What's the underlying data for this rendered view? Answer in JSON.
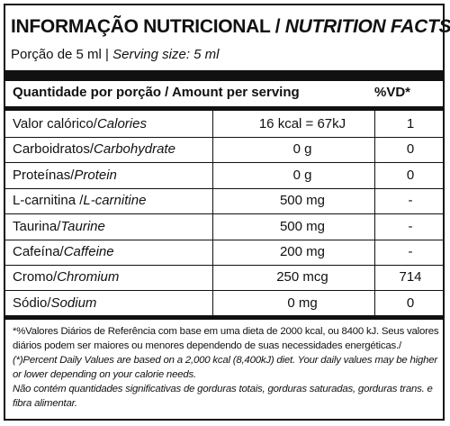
{
  "title": {
    "pt": "INFORMAÇÃO NUTRICIONAL /",
    "en": "NUTRITION FACTS"
  },
  "serving": {
    "pt": "Porção de 5 ml |",
    "en": "Serving size: 5 ml"
  },
  "columns": {
    "quantity": "Quantidade por porção / Amount per serving",
    "vd": "%VD*"
  },
  "rows": [
    {
      "pt": "Valor calórico/",
      "en": "Calories",
      "amount": "16 kcal = 67kJ",
      "vd": "1"
    },
    {
      "pt": "Carboidratos/",
      "en": "Carbohydrate",
      "amount": "0 g",
      "vd": "0"
    },
    {
      "pt": "Proteínas/",
      "en": "Protein",
      "amount": "0 g",
      "vd": "0"
    },
    {
      "pt": "L-carnitina /",
      "en": "L-carnitine",
      "amount": "500 mg",
      "vd": "-"
    },
    {
      "pt": "Taurina/",
      "en": "Taurine",
      "amount": "500 mg",
      "vd": "-"
    },
    {
      "pt": "Cafeína/",
      "en": "Caffeine",
      "amount": "200 mg",
      "vd": "-"
    },
    {
      "pt": "Cromo/",
      "en": "Chromium",
      "amount": "250 mcg",
      "vd": "714"
    },
    {
      "pt": "Sódio/",
      "en": "Sodium",
      "amount": "0 mg",
      "vd": "0"
    }
  ],
  "footnote": {
    "pt": "*%Valores Diários de Referência com base em uma dieta de 2000 kcal, ou 8400 kJ. Seus valores diários podem ser maiores ou menores dependendo de suas necessidades energéticas./",
    "en": "(*)Percent Daily Values are based on a 2,000 kcal (8,400kJ) diet. Your daily values may be higher or lower depending on your calorie needs.",
    "note": "Não contém quantidades significativas de gorduras totais, gorduras saturadas, gorduras trans. e fibra alimentar."
  }
}
